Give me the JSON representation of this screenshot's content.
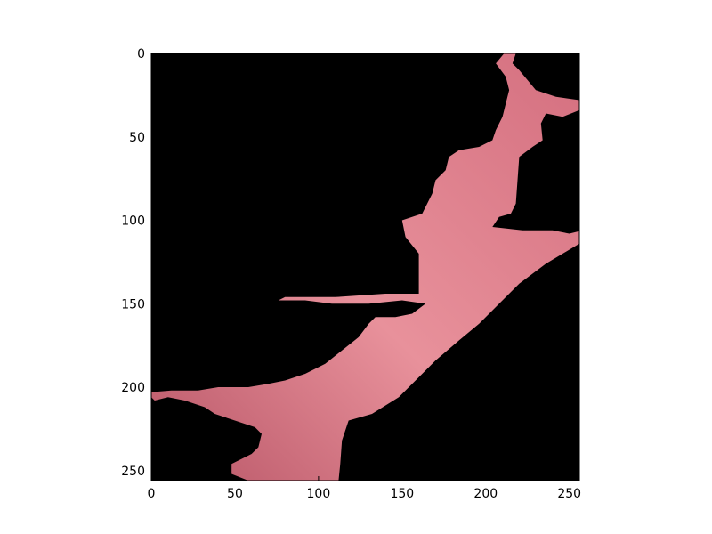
{
  "image_plot": {
    "x_axis": {
      "range": [
        0,
        256
      ],
      "tick_values": [
        0,
        50,
        100,
        150,
        200,
        250
      ],
      "tick_labels": [
        "0",
        "50",
        "100",
        "150",
        "200",
        "250"
      ]
    },
    "y_axis": {
      "range": [
        0,
        256
      ],
      "inverted": true,
      "tick_values": [
        0,
        50,
        100,
        150,
        200,
        250
      ],
      "tick_labels": [
        "0",
        "50",
        "100",
        "150",
        "200",
        "250"
      ]
    },
    "colors": {
      "background": "#000000",
      "region_main": "#d46f7f",
      "region_light": "#e8919b",
      "region_dark": "#b85566",
      "axes_frame": "#000000"
    },
    "region": {
      "description_source": "pink segmented region on black background",
      "outline_data_units": [
        [
          211,
          0
        ],
        [
          218,
          0
        ],
        [
          216,
          6
        ],
        [
          220,
          10
        ],
        [
          230,
          22
        ],
        [
          242,
          26
        ],
        [
          256,
          28
        ],
        [
          256,
          34
        ],
        [
          246,
          38
        ],
        [
          236,
          36
        ],
        [
          233,
          42
        ],
        [
          234,
          52
        ],
        [
          228,
          56
        ],
        [
          220,
          62
        ],
        [
          218,
          90
        ],
        [
          215,
          96
        ],
        [
          208,
          98
        ],
        [
          204,
          104
        ],
        [
          222,
          106
        ],
        [
          240,
          106
        ],
        [
          250,
          108
        ],
        [
          258,
          106
        ],
        [
          256,
          114
        ],
        [
          246,
          120
        ],
        [
          236,
          126
        ],
        [
          220,
          138
        ],
        [
          208,
          150
        ],
        [
          196,
          162
        ],
        [
          184,
          172
        ],
        [
          170,
          184
        ],
        [
          158,
          196
        ],
        [
          148,
          206
        ],
        [
          132,
          216
        ],
        [
          118,
          220
        ],
        [
          114,
          232
        ],
        [
          113,
          246
        ],
        [
          112,
          256
        ],
        [
          58,
          256
        ],
        [
          48,
          252
        ],
        [
          48,
          246
        ],
        [
          60,
          240
        ],
        [
          64,
          236
        ],
        [
          66,
          228
        ],
        [
          62,
          224
        ],
        [
          50,
          220
        ],
        [
          38,
          216
        ],
        [
          32,
          212
        ],
        [
          20,
          208
        ],
        [
          10,
          206
        ],
        [
          2,
          208
        ],
        [
          0,
          206
        ],
        [
          0,
          203
        ],
        [
          12,
          202
        ],
        [
          28,
          202
        ],
        [
          40,
          200
        ],
        [
          58,
          200
        ],
        [
          70,
          198
        ],
        [
          80,
          196
        ],
        [
          92,
          192
        ],
        [
          104,
          186
        ],
        [
          114,
          178
        ],
        [
          124,
          170
        ],
        [
          130,
          162
        ],
        [
          134,
          158
        ],
        [
          146,
          158
        ],
        [
          156,
          156
        ],
        [
          164,
          150
        ],
        [
          150,
          148
        ],
        [
          130,
          150
        ],
        [
          108,
          150
        ],
        [
          92,
          148
        ],
        [
          76,
          148
        ],
        [
          80,
          146
        ],
        [
          110,
          146
        ],
        [
          140,
          144
        ],
        [
          160,
          144
        ],
        [
          160,
          132
        ],
        [
          160,
          120
        ],
        [
          152,
          110
        ],
        [
          150,
          100
        ],
        [
          156,
          98
        ],
        [
          162,
          96
        ],
        [
          168,
          84
        ],
        [
          170,
          76
        ],
        [
          176,
          70
        ],
        [
          178,
          62
        ],
        [
          184,
          58
        ],
        [
          196,
          56
        ],
        [
          204,
          52
        ],
        [
          206,
          46
        ],
        [
          210,
          38
        ],
        [
          212,
          30
        ],
        [
          214,
          22
        ],
        [
          212,
          14
        ],
        [
          206,
          6
        ]
      ]
    }
  }
}
